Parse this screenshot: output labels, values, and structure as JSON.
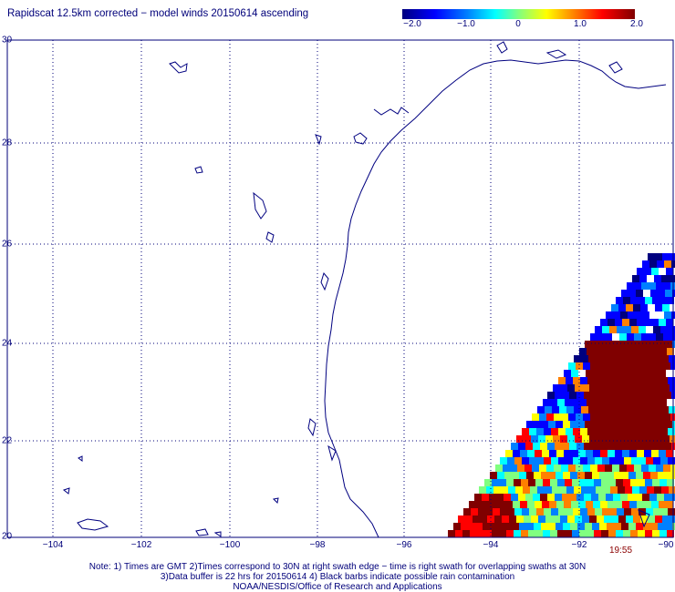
{
  "title": "Rapidscat 12.5km corrected − model winds 20150614 ascending",
  "colorbar": {
    "ticks": [
      "−2.0",
      "−1.0",
      "0",
      "1.0",
      "2.0"
    ],
    "colors": [
      "#00007f",
      "#0000ff",
      "#0080ff",
      "#00ffff",
      "#80ff80",
      "#ffff00",
      "#ff8000",
      "#ff0000",
      "#800000"
    ]
  },
  "map": {
    "lat_labels": [
      "30",
      "28",
      "26",
      "24",
      "22",
      "20"
    ],
    "lon_labels": [
      "−104",
      "−102",
      "−100",
      "−98",
      "−96",
      "−94",
      "−92",
      "−90"
    ],
    "coast_color": "#000080",
    "grid_color": "#00007a"
  },
  "swath_time": "19:55",
  "notes": {
    "line1": "Note: 1) Times are GMT 2)Times correspond to 30N at right swath edge − time is right swath for overlapping swaths at 30N",
    "line2": "3)Data buffer is 22 hrs for 20150614 4) Black barbs indicate possible rain contamination",
    "line3": "NOAA/NESDIS/Office of Research and Applications"
  }
}
